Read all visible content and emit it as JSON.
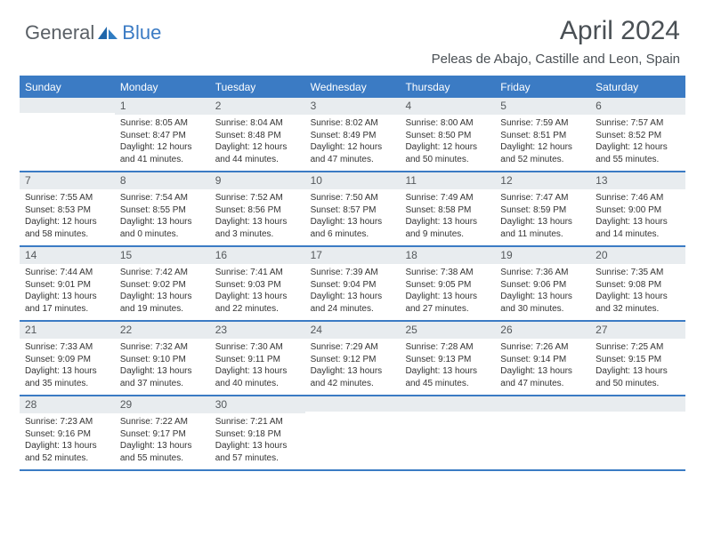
{
  "logo": {
    "general": "General",
    "blue": "Blue"
  },
  "title": "April 2024",
  "location": "Peleas de Abajo, Castille and Leon, Spain",
  "colors": {
    "accent": "#3b7bc4",
    "dayBarBg": "#e8ecef",
    "text": "#4a5055",
    "bodyText": "#333333"
  },
  "weekdays": [
    "Sunday",
    "Monday",
    "Tuesday",
    "Wednesday",
    "Thursday",
    "Friday",
    "Saturday"
  ],
  "layout": {
    "columns": 7,
    "rows": 5
  },
  "days": [
    {
      "num": "",
      "sunrise": "",
      "sunset": "",
      "daylight": ""
    },
    {
      "num": "1",
      "sunrise": "Sunrise: 8:05 AM",
      "sunset": "Sunset: 8:47 PM",
      "daylight": "Daylight: 12 hours and 41 minutes."
    },
    {
      "num": "2",
      "sunrise": "Sunrise: 8:04 AM",
      "sunset": "Sunset: 8:48 PM",
      "daylight": "Daylight: 12 hours and 44 minutes."
    },
    {
      "num": "3",
      "sunrise": "Sunrise: 8:02 AM",
      "sunset": "Sunset: 8:49 PM",
      "daylight": "Daylight: 12 hours and 47 minutes."
    },
    {
      "num": "4",
      "sunrise": "Sunrise: 8:00 AM",
      "sunset": "Sunset: 8:50 PM",
      "daylight": "Daylight: 12 hours and 50 minutes."
    },
    {
      "num": "5",
      "sunrise": "Sunrise: 7:59 AM",
      "sunset": "Sunset: 8:51 PM",
      "daylight": "Daylight: 12 hours and 52 minutes."
    },
    {
      "num": "6",
      "sunrise": "Sunrise: 7:57 AM",
      "sunset": "Sunset: 8:52 PM",
      "daylight": "Daylight: 12 hours and 55 minutes."
    },
    {
      "num": "7",
      "sunrise": "Sunrise: 7:55 AM",
      "sunset": "Sunset: 8:53 PM",
      "daylight": "Daylight: 12 hours and 58 minutes."
    },
    {
      "num": "8",
      "sunrise": "Sunrise: 7:54 AM",
      "sunset": "Sunset: 8:55 PM",
      "daylight": "Daylight: 13 hours and 0 minutes."
    },
    {
      "num": "9",
      "sunrise": "Sunrise: 7:52 AM",
      "sunset": "Sunset: 8:56 PM",
      "daylight": "Daylight: 13 hours and 3 minutes."
    },
    {
      "num": "10",
      "sunrise": "Sunrise: 7:50 AM",
      "sunset": "Sunset: 8:57 PM",
      "daylight": "Daylight: 13 hours and 6 minutes."
    },
    {
      "num": "11",
      "sunrise": "Sunrise: 7:49 AM",
      "sunset": "Sunset: 8:58 PM",
      "daylight": "Daylight: 13 hours and 9 minutes."
    },
    {
      "num": "12",
      "sunrise": "Sunrise: 7:47 AM",
      "sunset": "Sunset: 8:59 PM",
      "daylight": "Daylight: 13 hours and 11 minutes."
    },
    {
      "num": "13",
      "sunrise": "Sunrise: 7:46 AM",
      "sunset": "Sunset: 9:00 PM",
      "daylight": "Daylight: 13 hours and 14 minutes."
    },
    {
      "num": "14",
      "sunrise": "Sunrise: 7:44 AM",
      "sunset": "Sunset: 9:01 PM",
      "daylight": "Daylight: 13 hours and 17 minutes."
    },
    {
      "num": "15",
      "sunrise": "Sunrise: 7:42 AM",
      "sunset": "Sunset: 9:02 PM",
      "daylight": "Daylight: 13 hours and 19 minutes."
    },
    {
      "num": "16",
      "sunrise": "Sunrise: 7:41 AM",
      "sunset": "Sunset: 9:03 PM",
      "daylight": "Daylight: 13 hours and 22 minutes."
    },
    {
      "num": "17",
      "sunrise": "Sunrise: 7:39 AM",
      "sunset": "Sunset: 9:04 PM",
      "daylight": "Daylight: 13 hours and 24 minutes."
    },
    {
      "num": "18",
      "sunrise": "Sunrise: 7:38 AM",
      "sunset": "Sunset: 9:05 PM",
      "daylight": "Daylight: 13 hours and 27 minutes."
    },
    {
      "num": "19",
      "sunrise": "Sunrise: 7:36 AM",
      "sunset": "Sunset: 9:06 PM",
      "daylight": "Daylight: 13 hours and 30 minutes."
    },
    {
      "num": "20",
      "sunrise": "Sunrise: 7:35 AM",
      "sunset": "Sunset: 9:08 PM",
      "daylight": "Daylight: 13 hours and 32 minutes."
    },
    {
      "num": "21",
      "sunrise": "Sunrise: 7:33 AM",
      "sunset": "Sunset: 9:09 PM",
      "daylight": "Daylight: 13 hours and 35 minutes."
    },
    {
      "num": "22",
      "sunrise": "Sunrise: 7:32 AM",
      "sunset": "Sunset: 9:10 PM",
      "daylight": "Daylight: 13 hours and 37 minutes."
    },
    {
      "num": "23",
      "sunrise": "Sunrise: 7:30 AM",
      "sunset": "Sunset: 9:11 PM",
      "daylight": "Daylight: 13 hours and 40 minutes."
    },
    {
      "num": "24",
      "sunrise": "Sunrise: 7:29 AM",
      "sunset": "Sunset: 9:12 PM",
      "daylight": "Daylight: 13 hours and 42 minutes."
    },
    {
      "num": "25",
      "sunrise": "Sunrise: 7:28 AM",
      "sunset": "Sunset: 9:13 PM",
      "daylight": "Daylight: 13 hours and 45 minutes."
    },
    {
      "num": "26",
      "sunrise": "Sunrise: 7:26 AM",
      "sunset": "Sunset: 9:14 PM",
      "daylight": "Daylight: 13 hours and 47 minutes."
    },
    {
      "num": "27",
      "sunrise": "Sunrise: 7:25 AM",
      "sunset": "Sunset: 9:15 PM",
      "daylight": "Daylight: 13 hours and 50 minutes."
    },
    {
      "num": "28",
      "sunrise": "Sunrise: 7:23 AM",
      "sunset": "Sunset: 9:16 PM",
      "daylight": "Daylight: 13 hours and 52 minutes."
    },
    {
      "num": "29",
      "sunrise": "Sunrise: 7:22 AM",
      "sunset": "Sunset: 9:17 PM",
      "daylight": "Daylight: 13 hours and 55 minutes."
    },
    {
      "num": "30",
      "sunrise": "Sunrise: 7:21 AM",
      "sunset": "Sunset: 9:18 PM",
      "daylight": "Daylight: 13 hours and 57 minutes."
    },
    {
      "num": "",
      "sunrise": "",
      "sunset": "",
      "daylight": ""
    },
    {
      "num": "",
      "sunrise": "",
      "sunset": "",
      "daylight": ""
    },
    {
      "num": "",
      "sunrise": "",
      "sunset": "",
      "daylight": ""
    },
    {
      "num": "",
      "sunrise": "",
      "sunset": "",
      "daylight": ""
    }
  ]
}
